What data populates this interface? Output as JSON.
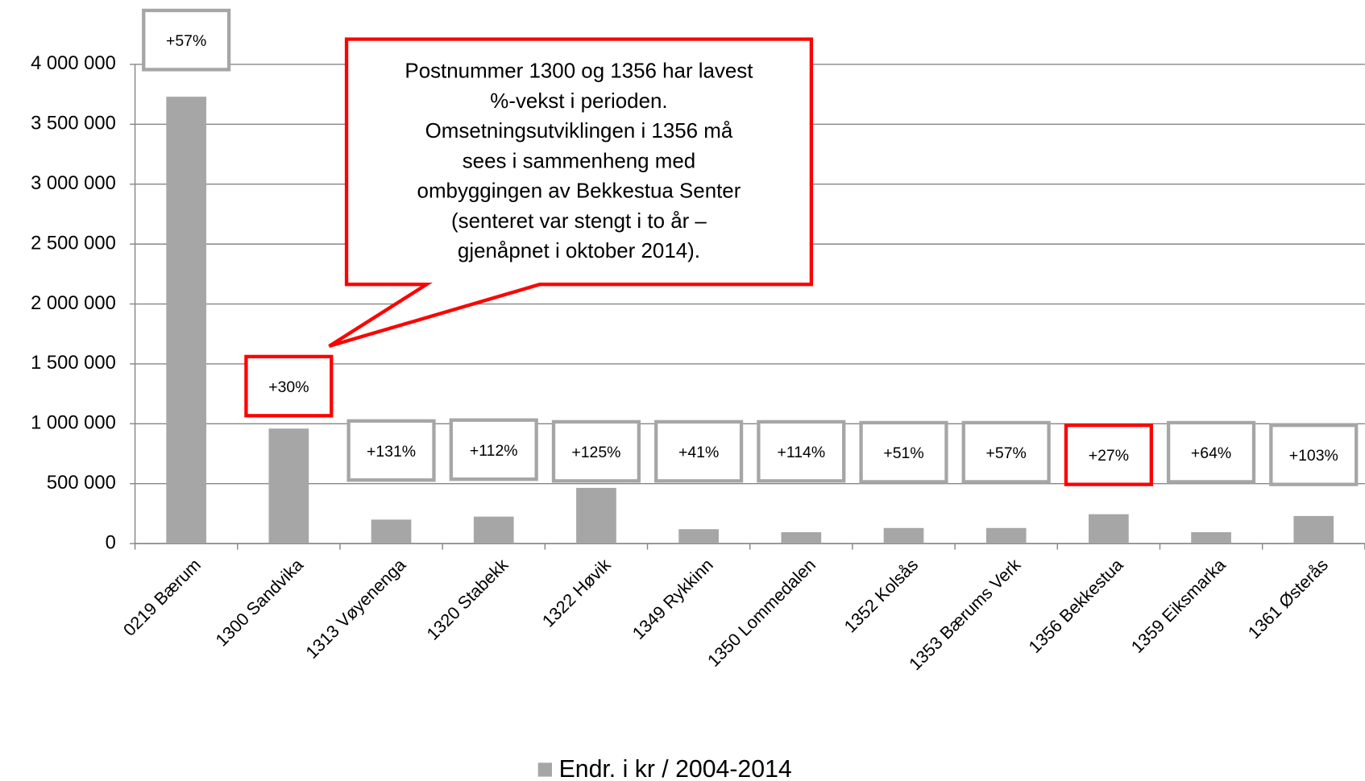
{
  "chart_data": {
    "type": "bar",
    "categories": [
      "0219 Bærum",
      "1300 Sandvika",
      "1313 Vøyenenga",
      "1320 Stabekk",
      "1322 Høvik",
      "1349 Rykkinn",
      "1350 Lommedalen",
      "1352 Kolsås",
      "1353 Bærums Verk",
      "1356 Bekkestua",
      "1359 Eiksmarka",
      "1361 Østerås"
    ],
    "series": [
      {
        "name": "Endr. i kr / 2004-2014",
        "color": "#a6a6a6",
        "values": [
          3730000,
          960000,
          200000,
          225000,
          465000,
          120000,
          95000,
          130000,
          130000,
          245000,
          95000,
          230000
        ]
      }
    ],
    "annotations": [
      "+57%",
      "+30%",
      "+131%",
      "+112%",
      "+125%",
      "+41%",
      "+114%",
      "+51%",
      "+57%",
      "+27%",
      "+64%",
      "+103%"
    ],
    "annotation_colors": [
      "#a6a6a6",
      "#ff0000",
      "#a6a6a6",
      "#a6a6a6",
      "#a6a6a6",
      "#a6a6a6",
      "#a6a6a6",
      "#a6a6a6",
      "#a6a6a6",
      "#ff0000",
      "#a6a6a6",
      "#a6a6a6"
    ],
    "callout": [
      "Postnummer 1300 og 1356 har lavest",
      "%-vekst i perioden.",
      "Omsetningsutviklingen i 1356 må",
      "sees i sammenheng med",
      "ombyggingen av Bekkestua Senter",
      "(senteret var stengt i to år –",
      "gjenåpnet i oktober 2014)."
    ],
    "ylim": [
      0,
      4000000
    ],
    "yticks": [
      0,
      {
        "value": 500000,
        "label": "500 000"
      },
      {
        "value": 1000000,
        "label": "1 000 000"
      },
      {
        "value": 1500000,
        "label": "1 500 000"
      },
      {
        "value": 2000000,
        "label": "2 000 000"
      },
      {
        "value": 2500000,
        "label": "2 500 000"
      },
      {
        "value": 3000000,
        "label": "3 000 000"
      },
      {
        "value": 3500000,
        "label": "3 500 000"
      },
      {
        "value": 4000000,
        "label": "4 000 000"
      }
    ],
    "grid": true,
    "legend": "bottom"
  }
}
